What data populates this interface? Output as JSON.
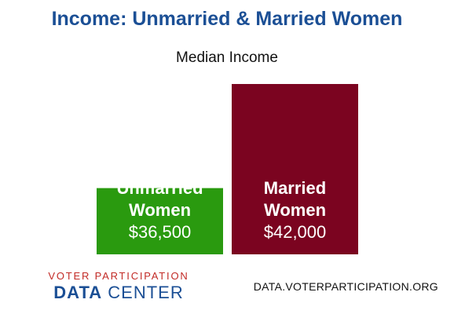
{
  "chart_data": {
    "type": "bar",
    "title": "Income: Unmarried & Married Women",
    "subtitle": "Median Income",
    "categories": [
      [
        "Unmarried",
        "Women"
      ],
      [
        "Married",
        "Women"
      ]
    ],
    "values": [
      36500,
      42000
    ],
    "value_labels": [
      "$36,500",
      "$42,000"
    ],
    "colors": [
      "#2a9a0f",
      "#7b0420"
    ],
    "ylim": [
      33000,
      42000
    ],
    "grid": false,
    "legend": "none"
  },
  "footer": {
    "logo_top": "VOTER PARTICIPATION",
    "logo_bold": "DATA",
    "logo_rest": " CENTER",
    "url": "DATA.VOTERPARTICIPATION.ORG"
  }
}
